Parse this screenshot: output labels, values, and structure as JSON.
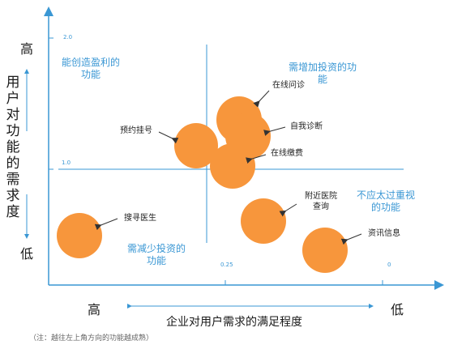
{
  "axes": {
    "y_title": "用户对功能的需求度",
    "y_high": "高",
    "y_low": "低",
    "x_title": "企业对用户需求的满足程度",
    "x_high": "高",
    "x_low": "低",
    "y_tick_top": "2.0",
    "y_tick_mid": "1.0",
    "x_tick_mid": "0.25",
    "x_tick_right": "0"
  },
  "quadrants": {
    "top_left": [
      "能创造盈利的",
      "功能"
    ],
    "top_right": [
      "需增加投资的功",
      "能"
    ],
    "bottom_left": [
      "需减少投资的",
      "功能"
    ],
    "bottom_right": [
      "不应太过重视",
      "的功能"
    ]
  },
  "bubbles": [
    {
      "label": [
        "在线问诊"
      ]
    },
    {
      "label": [
        "自我诊断"
      ]
    },
    {
      "label": [
        "预约挂号"
      ]
    },
    {
      "label": [
        "在线缴费"
      ]
    },
    {
      "label": [
        "附近医院",
        "查询"
      ]
    },
    {
      "label": [
        "搜寻医生"
      ]
    },
    {
      "label": [
        "资讯信息"
      ]
    }
  ],
  "note": "（注：越往左上角方向的功能越成熟）",
  "colors": {
    "bubble": "#f7963c",
    "axis": "#3a97d4",
    "quadrant_text": "#3a97d4"
  }
}
